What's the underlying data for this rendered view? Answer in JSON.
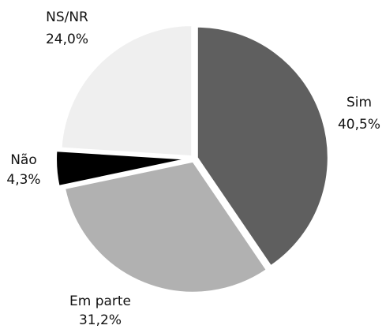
{
  "chart_data": {
    "type": "pie",
    "categories": [
      "Sim",
      "Em parte",
      "Não",
      "NS/NR"
    ],
    "values": [
      40.5,
      31.2,
      4.3,
      24.0
    ],
    "value_labels": [
      "40,5%",
      "31,2%",
      "4,3%",
      "24,0%"
    ],
    "colors": [
      "#5f5f5f",
      "#b1b1b1",
      "#000000",
      "#efefef"
    ]
  }
}
